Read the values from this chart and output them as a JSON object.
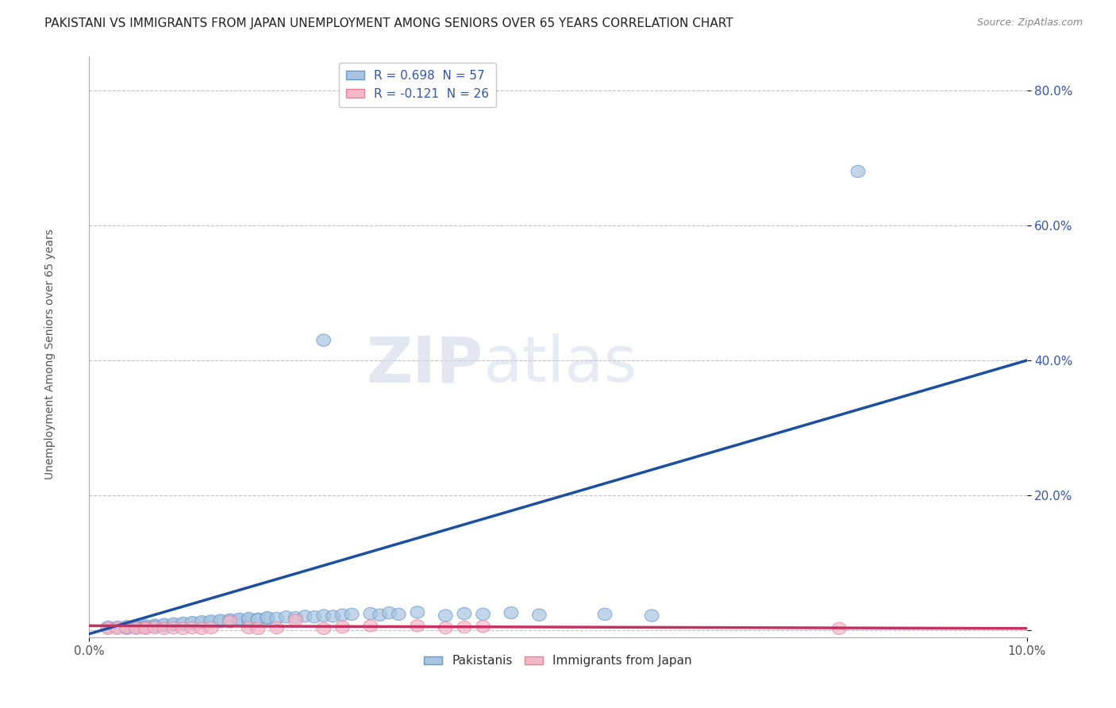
{
  "title": "PAKISTANI VS IMMIGRANTS FROM JAPAN UNEMPLOYMENT AMONG SENIORS OVER 65 YEARS CORRELATION CHART",
  "source": "Source: ZipAtlas.com",
  "ylabel": "Unemployment Among Seniors over 65 years",
  "xlim": [
    0.0,
    0.1
  ],
  "ylim": [
    -0.01,
    0.85
  ],
  "yticks": [
    0.0,
    0.2,
    0.4,
    0.6,
    0.8
  ],
  "ytick_labels": [
    "",
    "20.0%",
    "40.0%",
    "60.0%",
    "80.0%"
  ],
  "xticks": [
    0.0,
    0.1
  ],
  "xtick_labels": [
    "0.0%",
    "10.0%"
  ],
  "legend_r1": "R = 0.698  N = 57",
  "legend_r2": "R = -0.121  N = 26",
  "blue_color": "#A8C4E0",
  "blue_edge_color": "#6699CC",
  "pink_color": "#F5B8C8",
  "pink_edge_color": "#E8809A",
  "blue_line_color": "#1C4FA0",
  "pink_line_color": "#C83060",
  "blue_scatter": [
    [
      0.002,
      0.005
    ],
    [
      0.003,
      0.005
    ],
    [
      0.004,
      0.006
    ],
    [
      0.004,
      0.003
    ],
    [
      0.005,
      0.006
    ],
    [
      0.005,
      0.004
    ],
    [
      0.006,
      0.007
    ],
    [
      0.006,
      0.005
    ],
    [
      0.007,
      0.008
    ],
    [
      0.007,
      0.006
    ],
    [
      0.008,
      0.007
    ],
    [
      0.008,
      0.009
    ],
    [
      0.009,
      0.008
    ],
    [
      0.009,
      0.01
    ],
    [
      0.01,
      0.009
    ],
    [
      0.01,
      0.011
    ],
    [
      0.011,
      0.01
    ],
    [
      0.011,
      0.012
    ],
    [
      0.012,
      0.011
    ],
    [
      0.012,
      0.013
    ],
    [
      0.013,
      0.012
    ],
    [
      0.013,
      0.014
    ],
    [
      0.014,
      0.013
    ],
    [
      0.014,
      0.015
    ],
    [
      0.015,
      0.014
    ],
    [
      0.015,
      0.016
    ],
    [
      0.016,
      0.015
    ],
    [
      0.016,
      0.017
    ],
    [
      0.017,
      0.016
    ],
    [
      0.017,
      0.018
    ],
    [
      0.018,
      0.017
    ],
    [
      0.018,
      0.016
    ],
    [
      0.019,
      0.018
    ],
    [
      0.019,
      0.019
    ],
    [
      0.02,
      0.018
    ],
    [
      0.021,
      0.02
    ],
    [
      0.022,
      0.019
    ],
    [
      0.023,
      0.021
    ],
    [
      0.024,
      0.02
    ],
    [
      0.025,
      0.022
    ],
    [
      0.026,
      0.021
    ],
    [
      0.027,
      0.023
    ],
    [
      0.028,
      0.024
    ],
    [
      0.03,
      0.025
    ],
    [
      0.031,
      0.023
    ],
    [
      0.032,
      0.026
    ],
    [
      0.033,
      0.024
    ],
    [
      0.035,
      0.027
    ],
    [
      0.038,
      0.022
    ],
    [
      0.04,
      0.025
    ],
    [
      0.042,
      0.024
    ],
    [
      0.045,
      0.026
    ],
    [
      0.048,
      0.023
    ],
    [
      0.055,
      0.024
    ],
    [
      0.06,
      0.022
    ],
    [
      0.082,
      0.68
    ],
    [
      0.025,
      0.43
    ]
  ],
  "pink_scatter": [
    [
      0.002,
      0.003
    ],
    [
      0.003,
      0.003
    ],
    [
      0.004,
      0.004
    ],
    [
      0.005,
      0.003
    ],
    [
      0.006,
      0.004
    ],
    [
      0.006,
      0.003
    ],
    [
      0.007,
      0.004
    ],
    [
      0.008,
      0.003
    ],
    [
      0.009,
      0.004
    ],
    [
      0.01,
      0.003
    ],
    [
      0.011,
      0.004
    ],
    [
      0.012,
      0.003
    ],
    [
      0.013,
      0.004
    ],
    [
      0.015,
      0.013
    ],
    [
      0.017,
      0.004
    ],
    [
      0.018,
      0.003
    ],
    [
      0.02,
      0.004
    ],
    [
      0.022,
      0.015
    ],
    [
      0.025,
      0.003
    ],
    [
      0.027,
      0.005
    ],
    [
      0.03,
      0.007
    ],
    [
      0.035,
      0.007
    ],
    [
      0.038,
      0.004
    ],
    [
      0.04,
      0.005
    ],
    [
      0.042,
      0.006
    ],
    [
      0.08,
      0.003
    ]
  ],
  "blue_line_x": [
    0.0,
    0.1
  ],
  "blue_line_y": [
    -0.005,
    0.4
  ],
  "pink_line_x": [
    0.0,
    0.1
  ],
  "pink_line_y": [
    0.007,
    0.003
  ],
  "figsize": [
    14.06,
    8.92
  ],
  "dpi": 100
}
